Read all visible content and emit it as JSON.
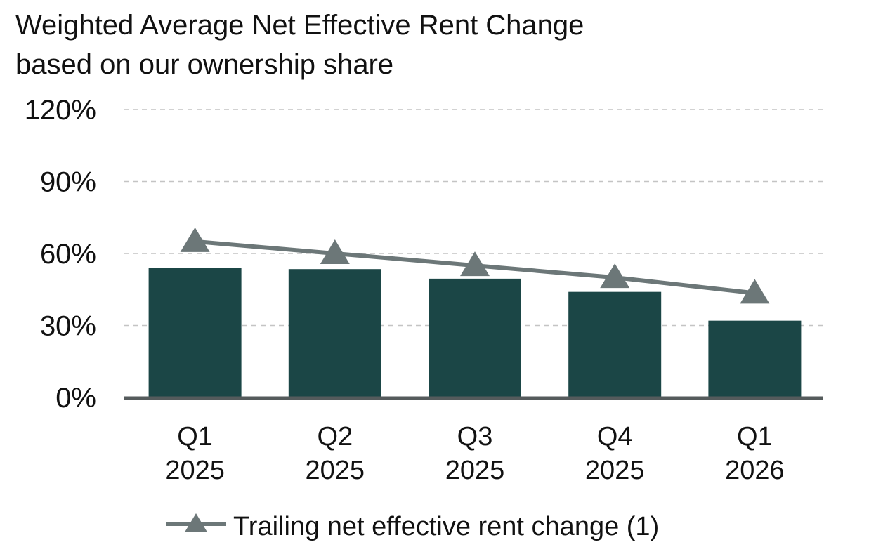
{
  "title": {
    "line1": "Weighted Average Net Effective Rent Change",
    "line2": "based on our ownership share"
  },
  "chart_data": {
    "type": "bar",
    "categories": [
      [
        "Q1",
        "2025"
      ],
      [
        "Q2",
        "2025"
      ],
      [
        "Q3",
        "2025"
      ],
      [
        "Q4",
        "2025"
      ],
      [
        "Q1",
        "2026"
      ]
    ],
    "series": [
      {
        "kind": "bar",
        "values": [
          54,
          53.5,
          49.5,
          44,
          32
        ],
        "color": "#1b4646"
      },
      {
        "kind": "line",
        "name": "Trailing net effective rent change (1)",
        "marker": "triangle",
        "values": [
          65,
          60,
          55,
          50,
          43.5
        ],
        "color": "#6c7778"
      }
    ],
    "y_ticks": [
      "0%",
      "30%",
      "60%",
      "90%",
      "120%"
    ],
    "ylim": [
      0,
      120
    ],
    "grid": "dashed horizontal",
    "legend_position": "bottom"
  }
}
